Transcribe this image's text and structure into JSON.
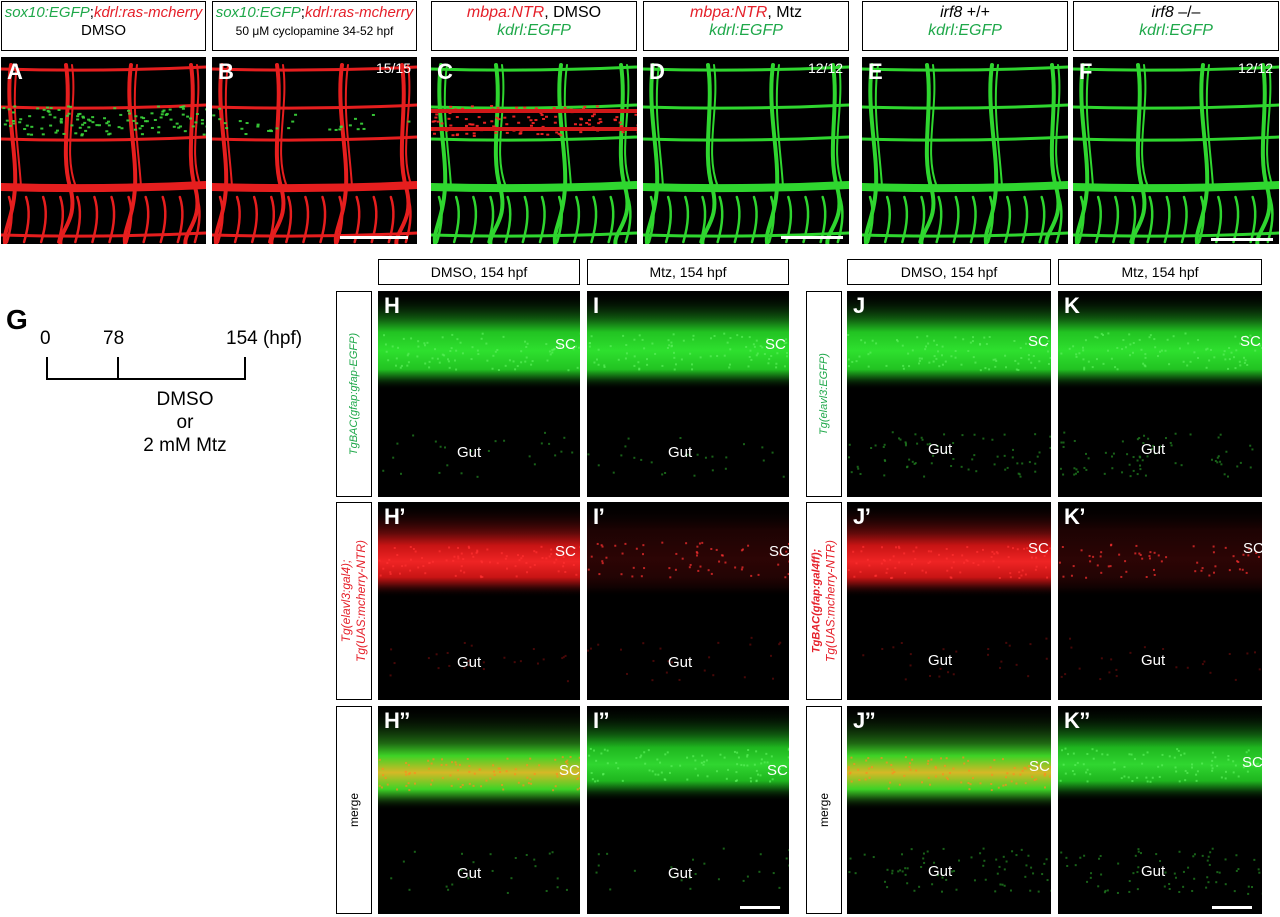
{
  "top_headers": [
    {
      "id": "A",
      "line1_green": "sox10:EGFP",
      "sep": ";",
      "line1_red": "kdrl:ras-mcherry",
      "line2": "DMSO"
    },
    {
      "id": "B",
      "line1_green": "sox10:EGFP",
      "sep": ";",
      "line1_red": "kdrl:ras-mcherry",
      "line2": "50 μM cyclopamine 34-52 hpf"
    },
    {
      "id": "C",
      "line1_red": "mbpa:NTR",
      "line1_black": ", DMSO",
      "line2_green": "kdrl:EGFP"
    },
    {
      "id": "D",
      "line1_red": "mbpa:NTR",
      "line1_black": ", Mtz",
      "line2_green": "kdrl:EGFP"
    },
    {
      "id": "E",
      "line1_italic": "irf8",
      "line1_black": " +/+",
      "line2_green": "kdrl:EGFP"
    },
    {
      "id": "F",
      "line1_italic": "irf8",
      "line1_black": " –/–",
      "line2_green": "kdrl:EGFP"
    }
  ],
  "top_panels": {
    "A": {
      "label": "A",
      "count": ""
    },
    "B": {
      "label": "B",
      "count": "15/15"
    },
    "C": {
      "label": "C",
      "count": ""
    },
    "D": {
      "label": "D",
      "count": "12/12"
    },
    "E": {
      "label": "E",
      "count": ""
    },
    "F": {
      "label": "F",
      "count": "12/12"
    }
  },
  "timeline": {
    "label": "G",
    "t0": "0",
    "t1": "78",
    "t2": "154 (hpf)",
    "treat_line1": "DMSO",
    "treat_line2": "or",
    "treat_line3": "2 mM Mtz"
  },
  "bottom_headers": {
    "H": "DMSO, 154 hpf",
    "I": "Mtz, 154 hpf",
    "J": "DMSO, 154 hpf",
    "K": "Mtz, 154 hpf"
  },
  "row_labels_left": {
    "row1": "TgBAC(gfap:gfap-EGFP)",
    "row2_line1": "Tg(elavl3:gal4);",
    "row2_line2": "Tg(UAS:mcherry-NTR)",
    "row3": "merge"
  },
  "row_labels_right": {
    "row1": "Tg(elavl3:EGFP)",
    "row2_line1": "TgBAC(gfap:gal4ff);",
    "row2_line2": "Tg(UAS:mcherry-NTR)",
    "row3": "merge"
  },
  "bottom_panels": {
    "H": "H",
    "I": "I",
    "J": "J",
    "K": "K",
    "H1": "H’",
    "I1": "I’",
    "J1": "J’",
    "K1": "K’",
    "H2": "H’’",
    "I2": "I’’",
    "J2": "J’’",
    "K2": "K’’"
  },
  "annotations": {
    "sc": "SC",
    "gut": "Gut"
  },
  "colors": {
    "green": "#1fa84a",
    "red": "#e5202a",
    "signal_green": "#25d12a",
    "signal_red": "#ee1c1c"
  }
}
